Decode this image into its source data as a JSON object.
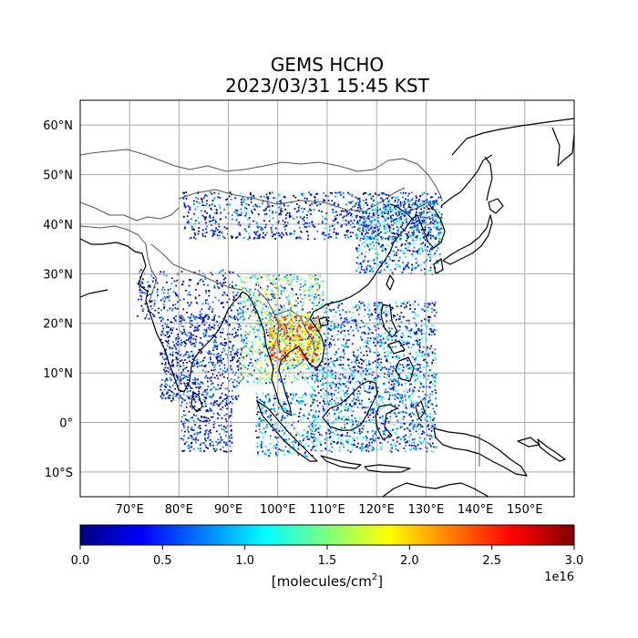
{
  "title": {
    "line1": "GEMS HCHO",
    "line2": "2023/03/31 15:45 KST"
  },
  "map": {
    "lon_range": [
      60,
      160
    ],
    "lat_range": [
      -15,
      65
    ],
    "gridlines": true,
    "coastline_color": "#000000",
    "border_color": "#555555",
    "lon_ticks": [
      {
        "value": 70,
        "label": "70°E"
      },
      {
        "value": 80,
        "label": "80°E"
      },
      {
        "value": 90,
        "label": "90°E"
      },
      {
        "value": 100,
        "label": "100°E"
      },
      {
        "value": 110,
        "label": "110°E"
      },
      {
        "value": 120,
        "label": "120°E"
      },
      {
        "value": 130,
        "label": "130°E"
      },
      {
        "value": 140,
        "label": "140°E"
      },
      {
        "value": 150,
        "label": "150°E"
      }
    ],
    "lat_ticks": [
      {
        "value": 60,
        "label": "60°N"
      },
      {
        "value": 50,
        "label": "50°N"
      },
      {
        "value": 40,
        "label": "40°N"
      },
      {
        "value": 30,
        "label": "30°N"
      },
      {
        "value": 20,
        "label": "20°N"
      },
      {
        "value": 10,
        "label": "10°N"
      },
      {
        "value": 0,
        "label": "0°"
      },
      {
        "value": -10,
        "label": "10°S"
      }
    ]
  },
  "colorbar": {
    "min": 0.0,
    "max": 3.0,
    "ticks": [
      {
        "value": 0.0,
        "label": "0.0"
      },
      {
        "value": 0.5,
        "label": "0.5"
      },
      {
        "value": 1.0,
        "label": "1.0"
      },
      {
        "value": 1.5,
        "label": "1.5"
      },
      {
        "value": 2.0,
        "label": "2.0"
      },
      {
        "value": 2.5,
        "label": "2.5"
      },
      {
        "value": 3.0,
        "label": "3.0"
      }
    ],
    "exponent": "1e16",
    "label_text": "[molecules/cm",
    "label_sup": "2",
    "label_end": "]",
    "colormap": [
      "#00007f",
      "#0000ff",
      "#007fff",
      "#00ffff",
      "#7fff7f",
      "#ffff00",
      "#ff7f00",
      "#ff0000",
      "#7f0000"
    ]
  }
}
